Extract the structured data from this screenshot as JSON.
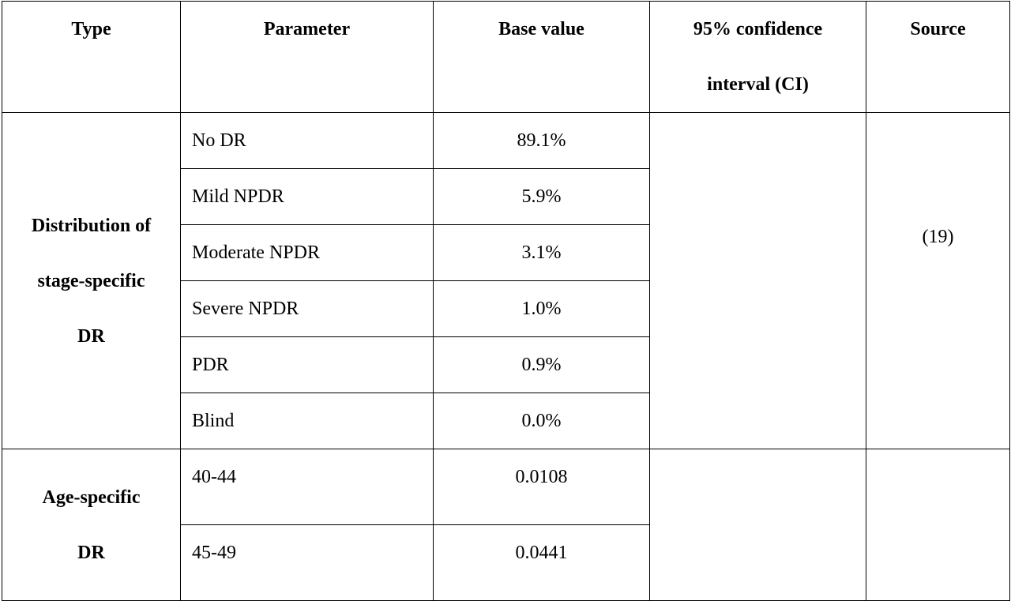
{
  "table": {
    "header": [
      [
        "Type"
      ],
      [
        "Parameter"
      ],
      [
        "Base value"
      ],
      [
        "95% confidence",
        "interval (CI)"
      ],
      [
        "Source"
      ]
    ],
    "groups": [
      {
        "type": [
          "Distribution of",
          "stage-specific",
          "DR"
        ],
        "source": "(19)",
        "rows": [
          {
            "parameter": "No DR",
            "base_value": "89.1%"
          },
          {
            "parameter": "Mild NPDR",
            "base_value": "5.9%"
          },
          {
            "parameter": "Moderate NPDR",
            "base_value": "3.1%"
          },
          {
            "parameter": "Severe NPDR",
            "base_value": "1.0%"
          },
          {
            "parameter": "PDR",
            "base_value": "0.9%"
          },
          {
            "parameter": "Blind",
            "base_value": "0.0%"
          }
        ]
      },
      {
        "type": [
          "Age-specific",
          "DR"
        ],
        "rows": [
          {
            "parameter": "40-44",
            "base_value": "0.0108"
          },
          {
            "parameter": "45-49",
            "base_value": "0.0441"
          }
        ]
      }
    ]
  }
}
